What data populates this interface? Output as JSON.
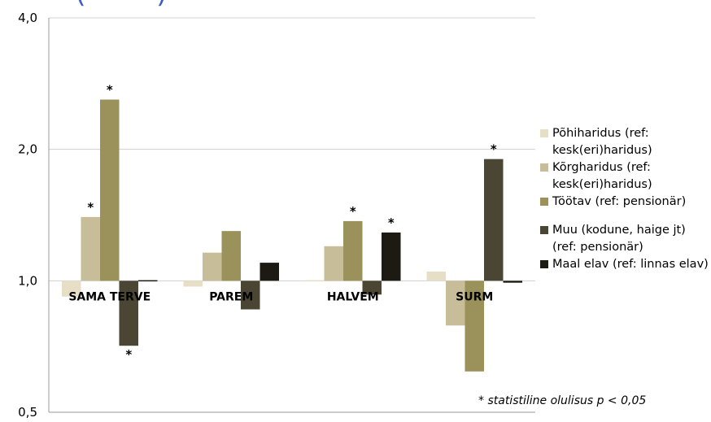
{
  "colors": {
    "pohiharidus": "#e6dfc6",
    "korgharidus": "#c7bd98",
    "tootav": "#9b915a",
    "muu": "#4b4534",
    "maal": "#1c1a12",
    "grid": "#d0d0d0",
    "axis": "#9a9a9a",
    "title": "#3b5fc4"
  },
  "title_fragment": "   (        )",
  "footnote": "*  statistiline olulisus  p  <  0,05",
  "chart_data": {
    "type": "bar",
    "yscale": "log",
    "ylim": [
      0.5,
      4.0
    ],
    "yticks": [
      0.5,
      1.0,
      2.0,
      4.0
    ],
    "ytick_labels": [
      "0,5",
      "1,0",
      "2,0",
      "4,0"
    ],
    "baseline": 1.0,
    "grid": "horizontal",
    "legend_position": "right",
    "categories": [
      "SAMA TERVE",
      "PAREM",
      "HALVEM",
      "SURM"
    ],
    "series": [
      {
        "name": "Põhiharidus (ref: kesk(eri)haridus)",
        "color_key": "pohiharidus",
        "values": [
          0.92,
          0.97,
          1.0,
          1.05
        ],
        "significant": [
          false,
          false,
          false,
          false
        ]
      },
      {
        "name": "Kõrgharidus (ref: kesk(eri)haridus)",
        "color_key": "korgharidus",
        "values": [
          1.4,
          1.16,
          1.2,
          0.79
        ],
        "significant": [
          true,
          false,
          false,
          false
        ]
      },
      {
        "name": "Töötav (ref: pensionär)",
        "color_key": "tootav",
        "values": [
          2.6,
          1.3,
          1.37,
          0.62
        ],
        "significant": [
          true,
          false,
          true,
          false
        ]
      },
      {
        "name": "Muu (kodune, haige jt) (ref: pensionär)",
        "color_key": "muu",
        "values": [
          0.71,
          0.86,
          0.93,
          1.9
        ],
        "significant": [
          true,
          false,
          false,
          true
        ]
      },
      {
        "name": "Maal elav (ref: linnas elav)",
        "color_key": "maal",
        "values": [
          1.0,
          1.1,
          1.29,
          0.99
        ],
        "significant": [
          false,
          false,
          true,
          false
        ]
      }
    ],
    "significance_marker": "*"
  }
}
